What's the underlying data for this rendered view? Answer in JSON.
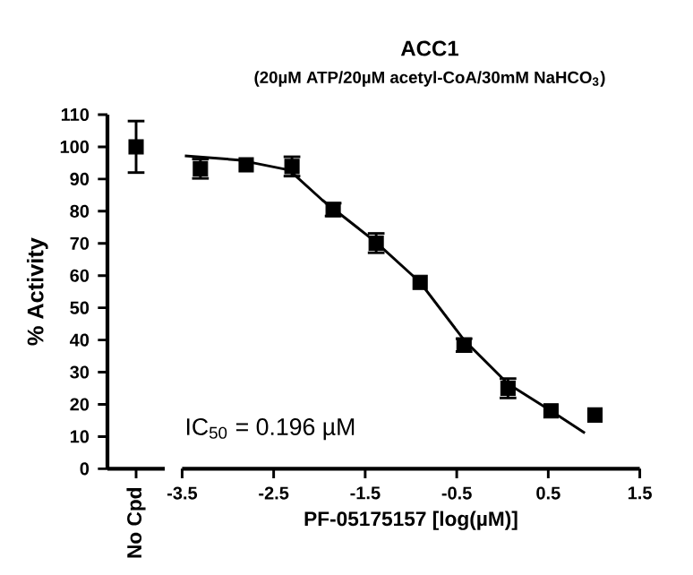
{
  "chart_data": [
    {
      "type": "scatter",
      "ylabel": "% Activity",
      "categories": [
        "No Cpd"
      ],
      "values": [
        100
      ],
      "errors": [
        8
      ],
      "color": "#000000",
      "marker": "square",
      "ylim": [
        0,
        110
      ],
      "yticks": [
        0,
        10,
        20,
        30,
        40,
        50,
        60,
        70,
        80,
        90,
        100,
        110
      ]
    },
    {
      "type": "scatter",
      "title": "ACC1",
      "subtitle": "(20µM ATP/20µM acetyl-CoA/30mM NaHCO$_{3}$)",
      "xlabel": "PF-05175157 [log(µM)]",
      "xlim": [
        -3.5,
        1.5
      ],
      "xticks": [
        -3.5,
        -2.5,
        -1.5,
        -0.5,
        0.5,
        1.5
      ],
      "ylim": [
        0,
        110
      ],
      "tick_labels": "x",
      "annotations": [
        "IC$_{50}$ = 0.196 µM"
      ],
      "series": [
        {
          "type": "scatter",
          "marker": "square",
          "color": "#000000",
          "x": [
            -3.3,
            -2.8,
            -2.3,
            -1.85,
            -1.38,
            -0.9,
            -0.42,
            0.06,
            0.53,
            1.01
          ],
          "values": [
            93.2,
            94.4,
            93.9,
            80.5,
            70.1,
            57.9,
            38.4,
            25.0,
            18.0,
            16.7
          ],
          "errors": [
            3,
            null,
            3,
            2,
            3,
            null,
            2,
            3,
            null,
            null
          ]
        },
        {
          "type": "line",
          "color": "#000000",
          "x": [
            -3.47,
            -2.88,
            -2.33,
            -1.97,
            -1.58,
            -1.38,
            -0.9,
            -0.42,
            0.06,
            0.53,
            0.9
          ],
          "values": [
            97.2,
            95.9,
            92.8,
            83.5,
            74.8,
            70.3,
            57.9,
            40.0,
            26.4,
            18.0,
            11.1
          ]
        }
      ]
    }
  ]
}
